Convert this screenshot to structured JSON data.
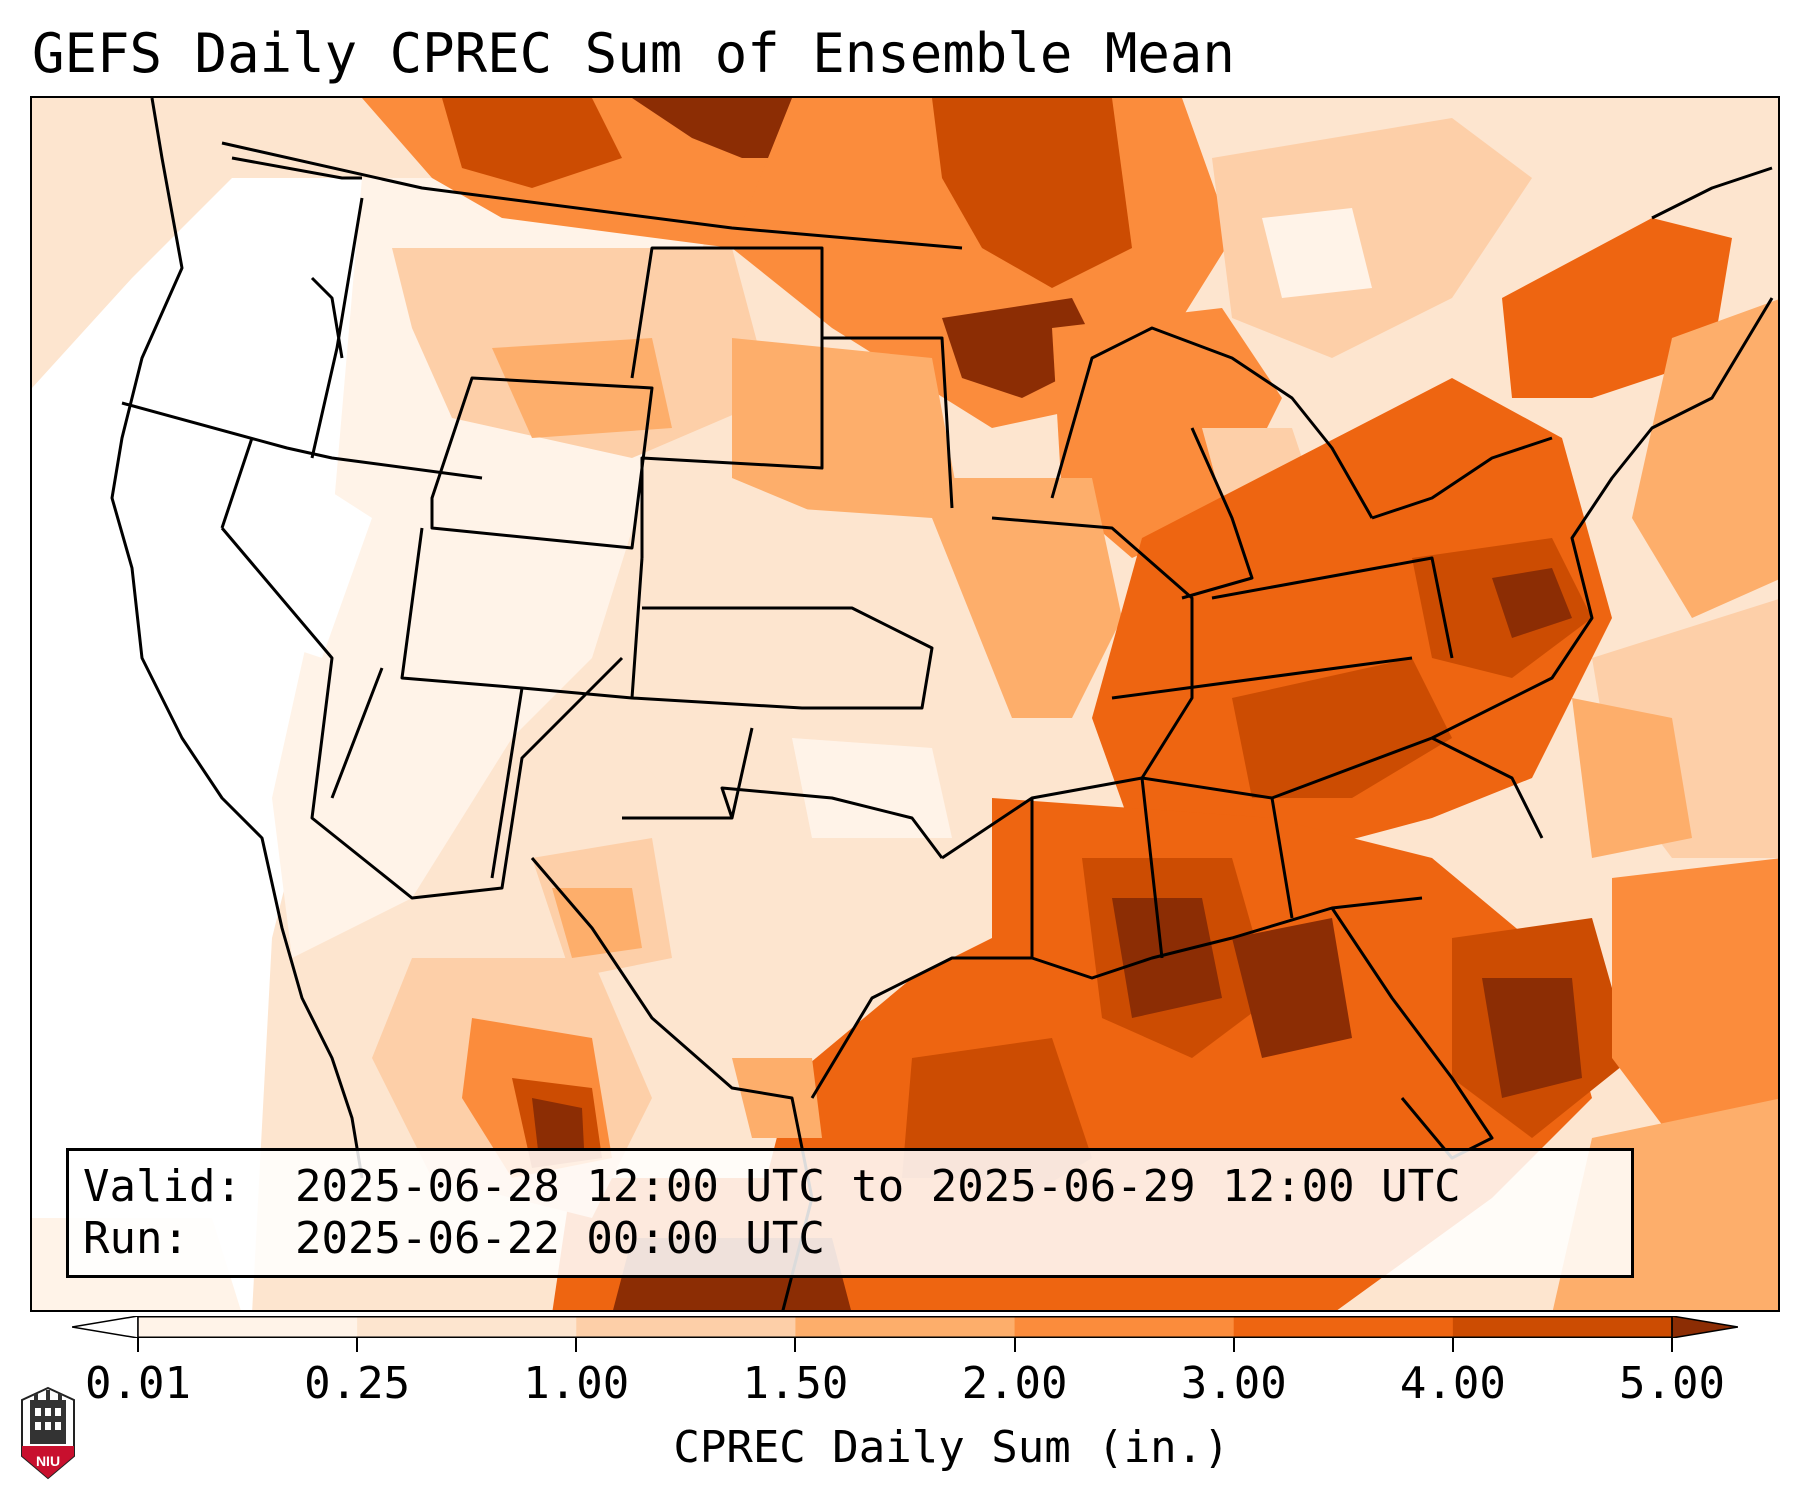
{
  "title": "GEFS Daily CPREC Sum of Ensemble Mean",
  "info": {
    "valid_label": "Valid:",
    "valid_value": "2025-06-28 12:00 UTC to 2025-06-29 12:00 UTC",
    "run_label": "Run:",
    "run_value": "2025-06-22 00:00 UTC"
  },
  "colorbar": {
    "label": "CPREC Daily Sum (in.)",
    "ticks": [
      "0.01",
      "0.25",
      "1.00",
      "1.50",
      "2.00",
      "3.00",
      "4.00",
      "5.00"
    ],
    "colors": [
      "#ffffff",
      "#fff3e8",
      "#fde5cf",
      "#fdcfa8",
      "#fdae6b",
      "#fb8c3c",
      "#ee6511",
      "#cc4c02",
      "#8c2d04"
    ],
    "extend": "both"
  },
  "map": {
    "region": "Contiguous United States",
    "pattern": "heaviest totals Gulf Coast, Southeast, Ohio Valley, Northeast and upper Midwest; lightest in the West"
  },
  "logo": {
    "text": "NIU",
    "icon": "niu-building-logo-icon"
  }
}
